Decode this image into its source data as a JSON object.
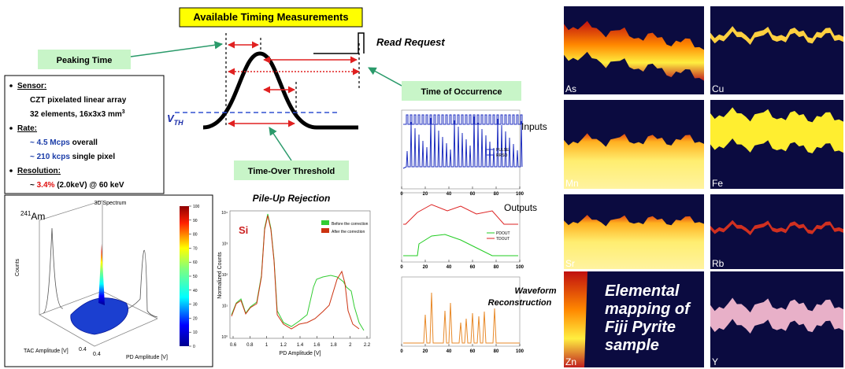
{
  "header": {
    "title": "Available Timing Measurements"
  },
  "timing": {
    "peaking_time": "Peaking Time",
    "read_request": "Read Request",
    "time_of_occurrence": "Time of Occurrence",
    "time_over_threshold": "Time-Over Threshold",
    "vth": {
      "main": "V",
      "sub": "TH"
    }
  },
  "specs": [
    {
      "heading": "Sensor:",
      "lines": [
        [
          {
            "text": "CZT pixelated linear array"
          }
        ],
        [
          {
            "text": "32 elements, 16x3x3 mm"
          },
          {
            "text": "3",
            "sup": true
          }
        ]
      ]
    },
    {
      "heading": "Rate:",
      "lines": [
        [
          {
            "text": "~ 4.5 Mcps",
            "color": "#1a3ca8"
          },
          {
            "text": " overall"
          }
        ],
        [
          {
            "text": "~ 210 kcps",
            "color": "#1a3ca8"
          },
          {
            "text": " single pixel"
          }
        ]
      ]
    },
    {
      "heading": "Resolution:",
      "lines": [
        [
          {
            "text": "~ "
          },
          {
            "text": "3.4%",
            "color": "#e01010"
          },
          {
            "text": " (2.0keV) @ 60 keV"
          }
        ]
      ]
    }
  ],
  "spectrum3d": {
    "title": "3D Spectrum",
    "isotope": {
      "mass": "241",
      "symbol": "Am"
    },
    "y_label": "Counts",
    "x_label": "TAC Amplitude [V]",
    "z_label": "PD Amplitude [V]",
    "x_tick": "0.4",
    "z_tick": "0.4",
    "colorbar_ticks": [
      0,
      10,
      20,
      30,
      40,
      50,
      60,
      70,
      80,
      90,
      100
    ]
  },
  "pileup": {
    "title": "Pile-Up Rejection",
    "element": "Si",
    "legend": [
      {
        "name": "Before the correction",
        "color": "#33cc33"
      },
      {
        "name": "After the correction",
        "color": "#cc3311"
      }
    ],
    "y_label": "Normalized Counts",
    "x_label": "PD Amplitude [V]",
    "xticks": [
      0.6,
      0.8,
      1,
      1.2,
      1.4,
      1.6,
      1.8,
      2,
      2.2
    ],
    "yticks": [
      "10⁰",
      "10¹",
      "10²",
      "10³",
      "10⁴"
    ]
  },
  "waveforms": {
    "inputs": "Inputs",
    "outputs": "Outputs",
    "reconstruction": [
      "Waveform",
      "Reconstruction"
    ],
    "input_legend": [
      "PULSE",
      "RRSO"
    ],
    "output_legend": [
      "PDOUT",
      "TDOUT"
    ],
    "xticks": [
      0,
      20,
      40,
      60,
      80,
      100
    ]
  },
  "maps": {
    "tiles": [
      "As",
      "Cu",
      "Mn",
      "Fe",
      "Sr",
      "Rb",
      "Zn",
      "Y"
    ],
    "caption": [
      "Elemental",
      "mapping of",
      "Fiji Pyrite",
      "sample"
    ]
  }
}
